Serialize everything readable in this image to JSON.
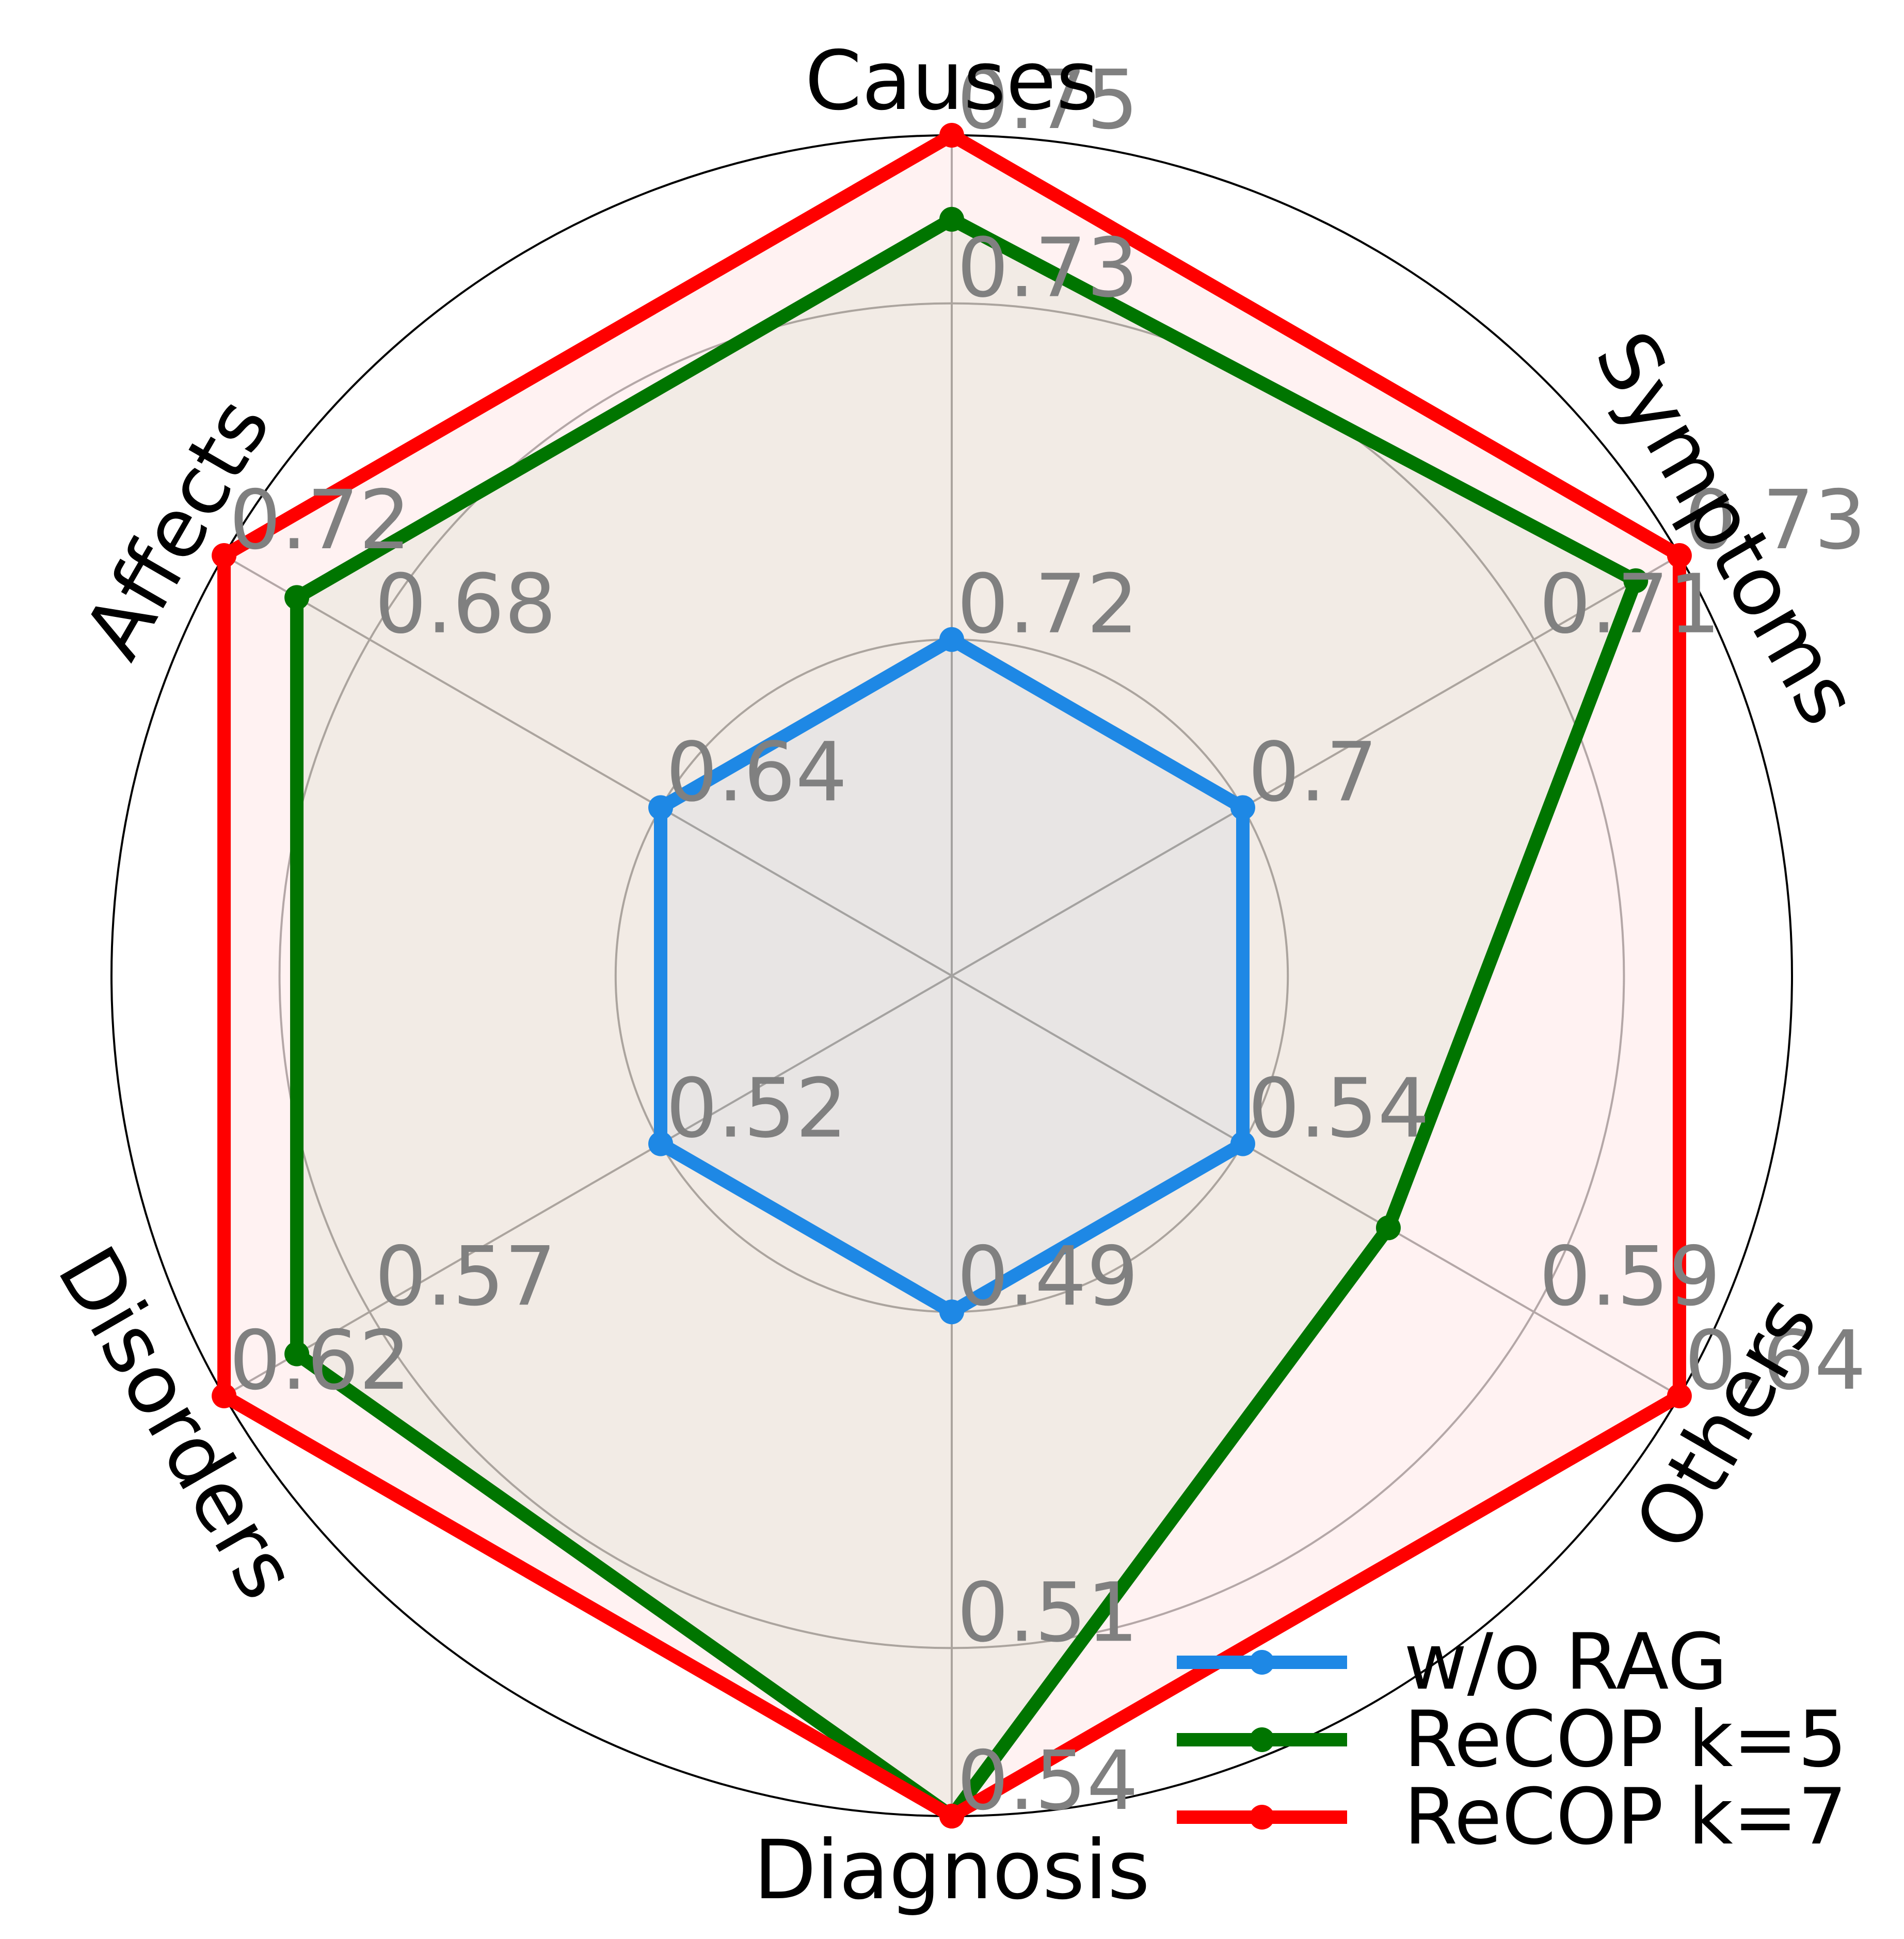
{
  "chart_data": {
    "type": "radar",
    "categories": [
      "Causes",
      "Symptoms",
      "Others",
      "Diagnosis",
      "Disorders",
      "Affects"
    ],
    "series": [
      {
        "name": "w/o RAG",
        "color": "#1e88e5",
        "values_normalized": [
          0.4,
          0.4,
          0.4,
          0.4,
          0.4,
          0.4
        ]
      },
      {
        "name": "ReCOP k=5",
        "color": "#007500",
        "values_normalized": [
          0.9,
          0.94,
          0.6,
          1.0,
          0.9,
          0.9
        ]
      },
      {
        "name": "ReCOP k=7",
        "color": "#ff0000",
        "values_normalized": [
          1.0,
          1.0,
          1.0,
          1.0,
          1.0,
          1.0
        ]
      }
    ],
    "tick_labels": [
      [
        "0.72",
        "0.73",
        "0.75"
      ],
      [
        "0.7",
        "0.71",
        "0.73"
      ],
      [
        "0.54",
        "0.59",
        "0.64"
      ],
      [
        "0.49",
        "0.51",
        "0.54"
      ],
      [
        "0.52",
        "0.57",
        "0.62"
      ],
      [
        "0.64",
        "0.68",
        "0.72"
      ]
    ],
    "tick_levels_normalized": [
      0.4,
      0.8,
      1.0
    ],
    "gridline_levels_normalized": [
      0.4,
      0.8
    ],
    "grid": true,
    "legend_position": "lower-right"
  }
}
